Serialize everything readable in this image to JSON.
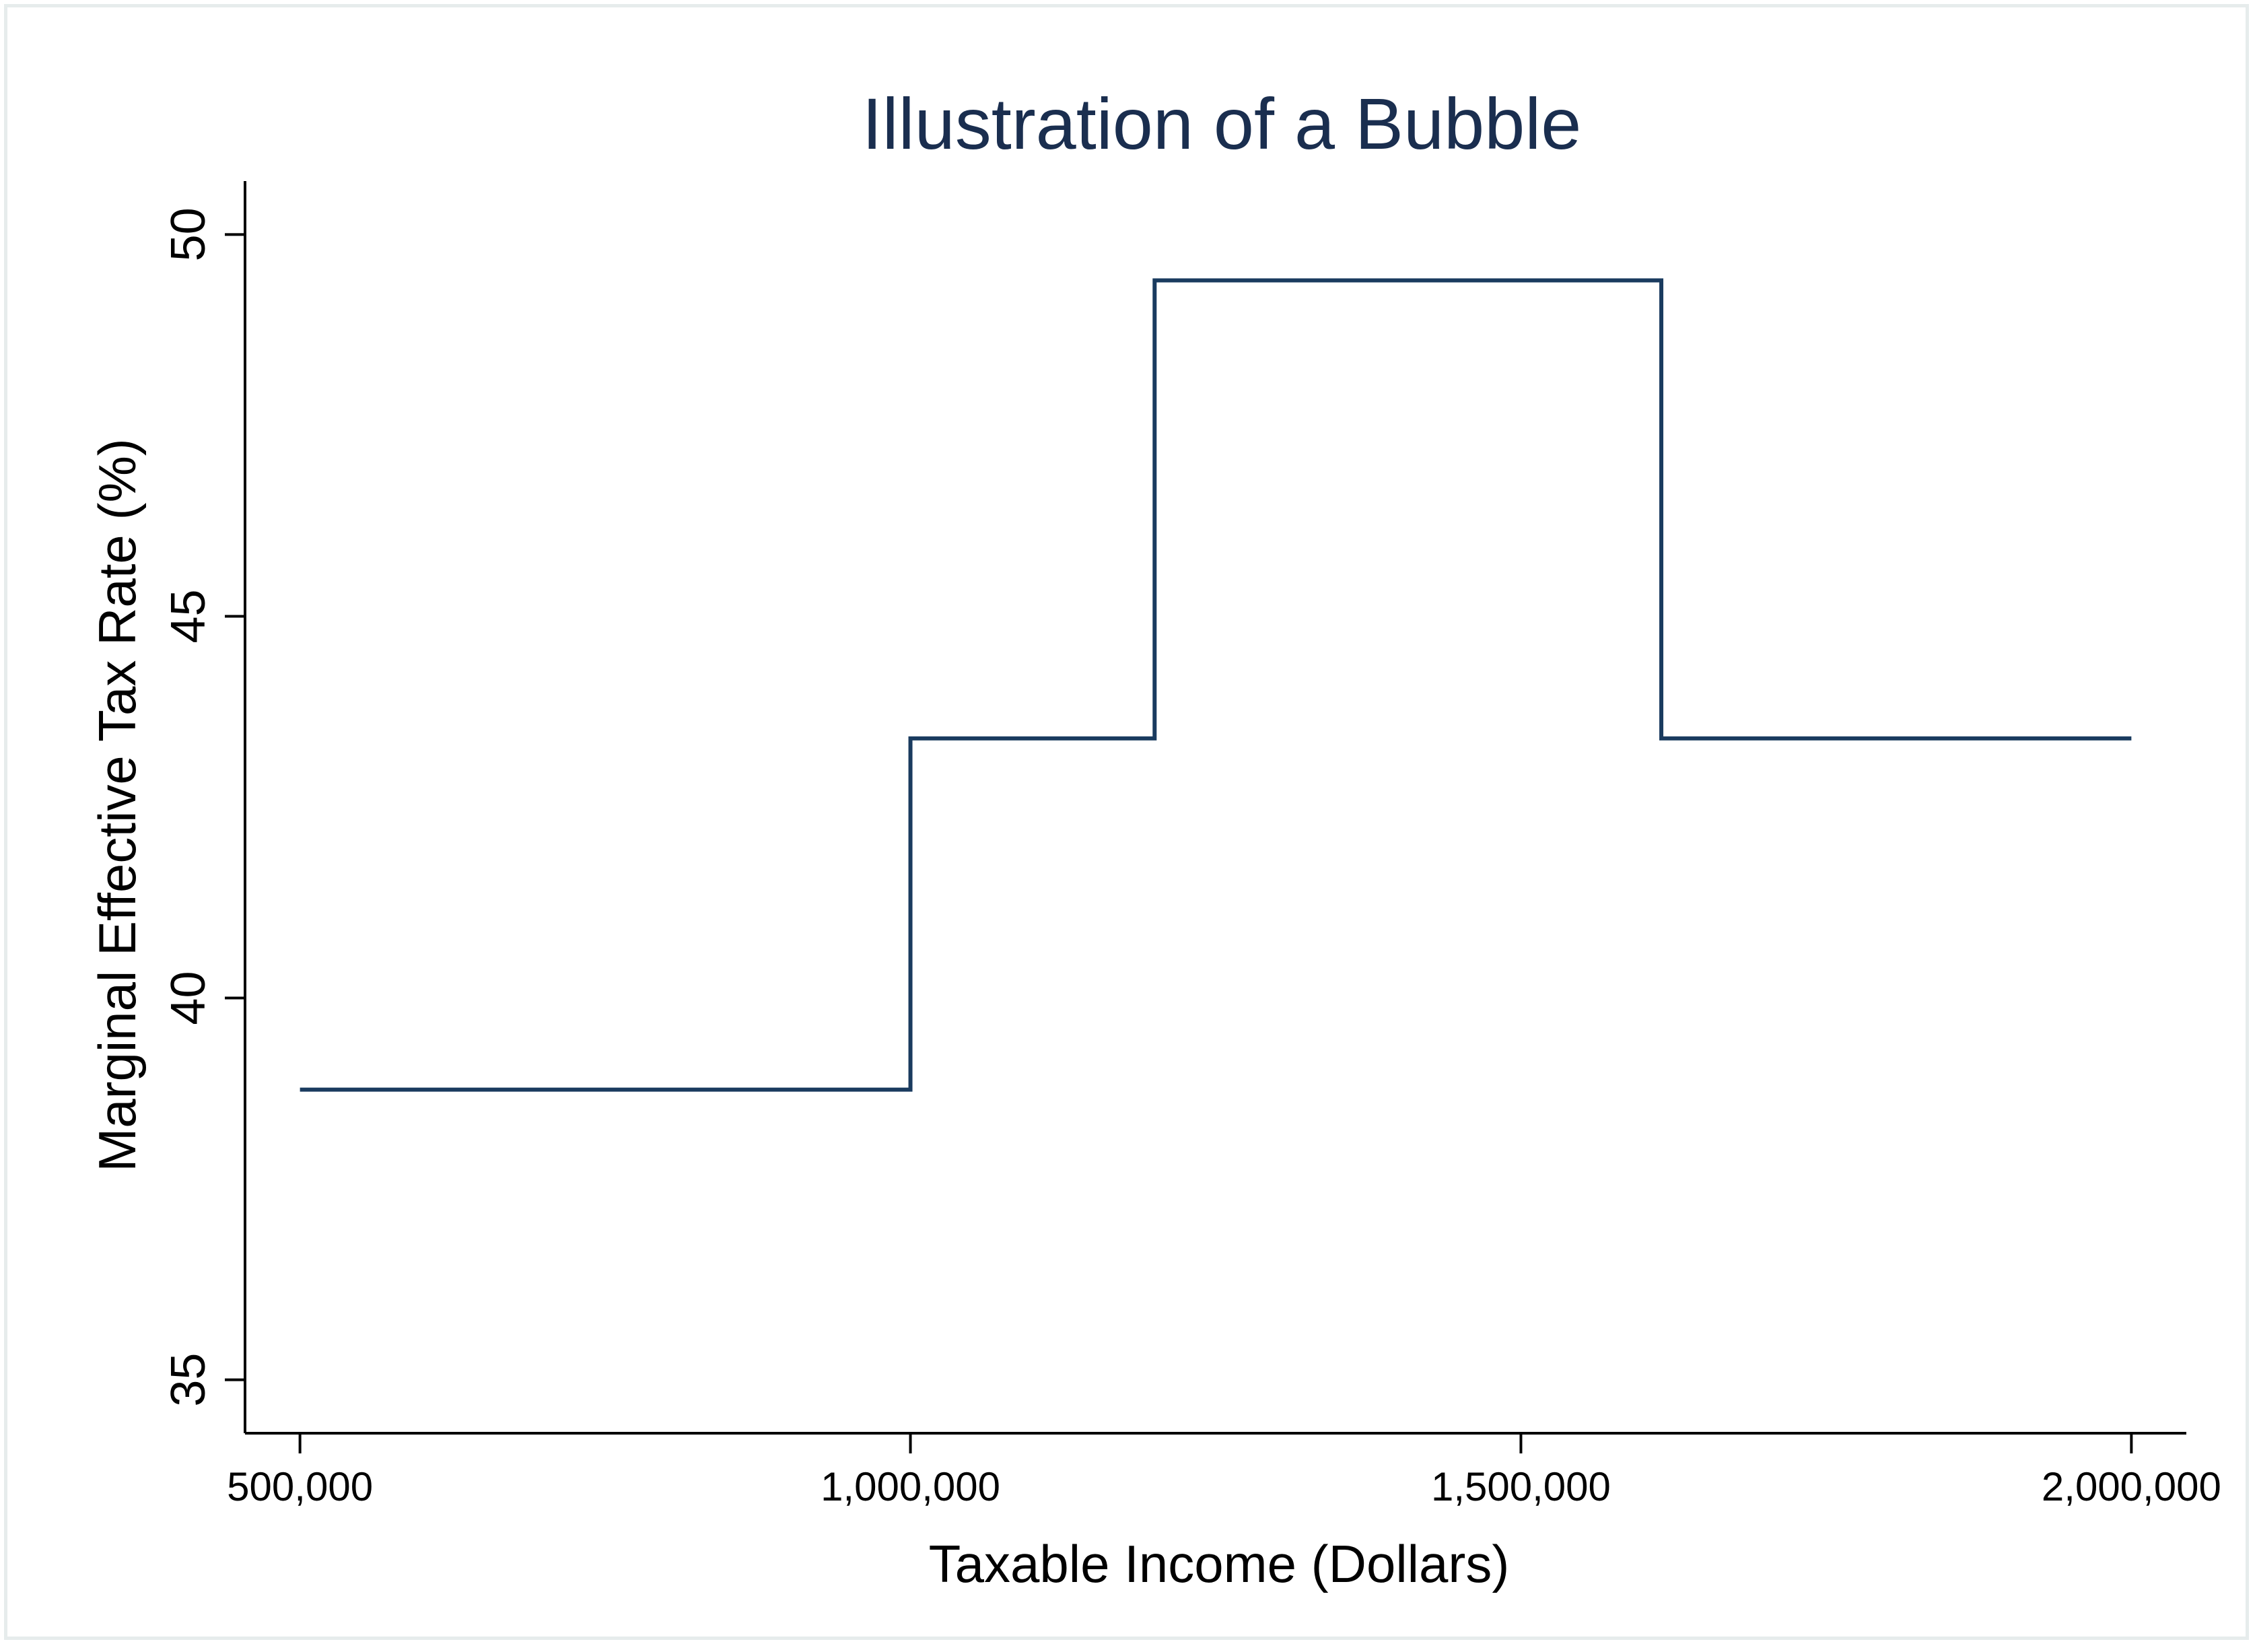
{
  "chart_data": {
    "type": "line",
    "step": "post",
    "title": "Illustration of a Bubble",
    "xlabel": "Taxable Income (Dollars)",
    "ylabel": "Marginal Effective Tax Rate (%)",
    "xlim": [
      455000,
      2045000
    ],
    "ylim": [
      34.3,
      50.7
    ],
    "x_ticks": [
      {
        "value": 500000,
        "label": "500,000"
      },
      {
        "value": 1000000,
        "label": "1,000,000"
      },
      {
        "value": 1500000,
        "label": "1,500,000"
      },
      {
        "value": 2000000,
        "label": "2,000,000"
      }
    ],
    "y_ticks": [
      {
        "value": 35,
        "label": "35"
      },
      {
        "value": 40,
        "label": "40"
      },
      {
        "value": 45,
        "label": "45"
      },
      {
        "value": 50,
        "label": "50"
      }
    ],
    "grid": false,
    "legend": "none",
    "line_color": "#1a3b5f",
    "series": [
      {
        "x": [
          500000,
          1000000,
          1200000,
          1615000,
          2000000
        ],
        "y": [
          38.8,
          43.4,
          49.4,
          43.4,
          43.4
        ]
      }
    ]
  }
}
